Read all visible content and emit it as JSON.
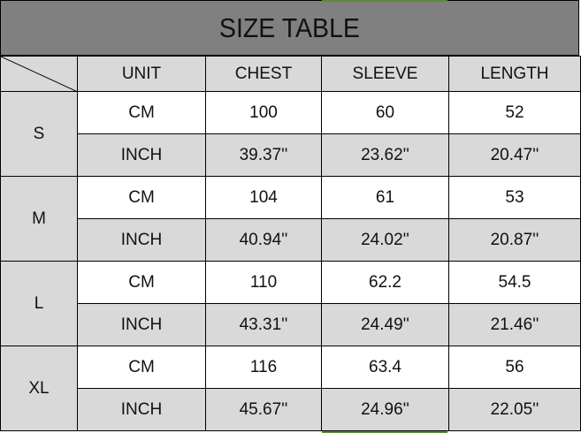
{
  "title": "SIZE TABLE",
  "columns": [
    "UNIT",
    "CHEST",
    "SLEEVE",
    "LENGTH"
  ],
  "sizes": [
    {
      "size": "S",
      "rows": [
        {
          "unit": "CM",
          "chest": "100",
          "sleeve": "60",
          "length": "52"
        },
        {
          "unit": "INCH",
          "chest": "39.37''",
          "sleeve": "23.62''",
          "length": "20.47''"
        }
      ]
    },
    {
      "size": "M",
      "rows": [
        {
          "unit": "CM",
          "chest": "104",
          "sleeve": "61",
          "length": "53"
        },
        {
          "unit": "INCH",
          "chest": "40.94''",
          "sleeve": "24.02''",
          "length": "20.87''"
        }
      ]
    },
    {
      "size": "L",
      "rows": [
        {
          "unit": "CM",
          "chest": "110",
          "sleeve": "62.2",
          "length": "54.5"
        },
        {
          "unit": "INCH",
          "chest": "43.31''",
          "sleeve": "24.49''",
          "length": "21.46''"
        }
      ]
    },
    {
      "size": "XL",
      "rows": [
        {
          "unit": "CM",
          "chest": "116",
          "sleeve": "63.4",
          "length": "56"
        },
        {
          "unit": "INCH",
          "chest": "45.67''",
          "sleeve": "24.96''",
          "length": "22.05''"
        }
      ]
    }
  ],
  "colors": {
    "title_bg": "#808080",
    "cell_gray": "#d9d9d9",
    "accent_green": "#5b8a3a"
  }
}
